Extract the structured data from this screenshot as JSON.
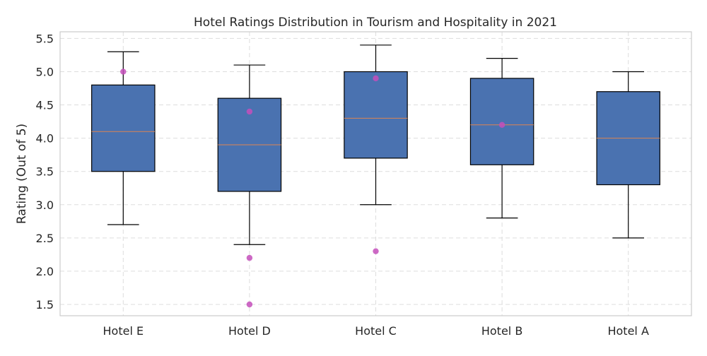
{
  "chart_data": {
    "type": "box",
    "title": "Hotel Ratings Distribution in Tourism and Hospitality in 2021",
    "xlabel": "",
    "ylabel": "Rating (Out of 5)",
    "ylim": [
      1.33,
      5.6
    ],
    "yticks": [
      1.5,
      2.0,
      2.5,
      3.0,
      3.5,
      4.0,
      4.5,
      5.0,
      5.5
    ],
    "grid": true,
    "categories": [
      "Hotel E",
      "Hotel D",
      "Hotel C",
      "Hotel B",
      "Hotel A"
    ],
    "boxes": [
      {
        "category": "Hotel E",
        "whisker_low": 2.7,
        "q1": 3.5,
        "median": 4.1,
        "q3": 4.8,
        "whisker_high": 5.3,
        "outliers": [
          5.0
        ]
      },
      {
        "category": "Hotel D",
        "whisker_low": 2.4,
        "q1": 3.2,
        "median": 3.9,
        "q3": 4.6,
        "whisker_high": 5.1,
        "outliers": [
          4.4,
          2.2,
          1.5
        ]
      },
      {
        "category": "Hotel C",
        "whisker_low": 3.0,
        "q1": 3.7,
        "median": 4.3,
        "q3": 5.0,
        "whisker_high": 5.4,
        "outliers": [
          4.9,
          2.3
        ]
      },
      {
        "category": "Hotel B",
        "whisker_low": 2.8,
        "q1": 3.6,
        "median": 4.2,
        "q3": 4.9,
        "whisker_high": 5.2,
        "outliers": [
          4.2
        ]
      },
      {
        "category": "Hotel A",
        "whisker_low": 2.5,
        "q1": 3.3,
        "median": 4.0,
        "q3": 4.7,
        "whisker_high": 5.0,
        "outliers": []
      }
    ],
    "colors": {
      "box_fill": "#4a72b0",
      "median": "#dd8452",
      "outlier": "#c44fbb",
      "grid": "#dddddd",
      "axes": "#cccccc"
    }
  }
}
